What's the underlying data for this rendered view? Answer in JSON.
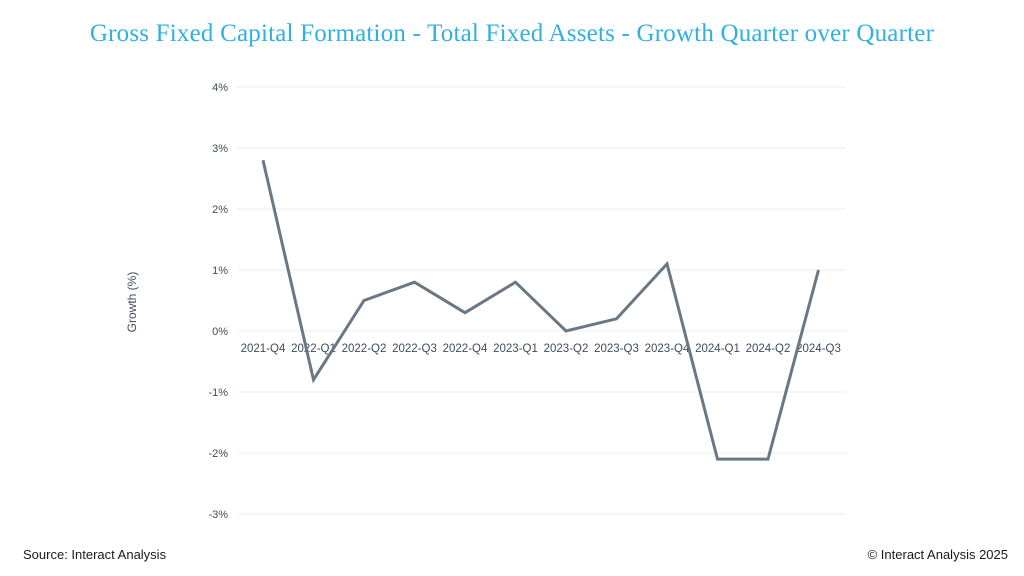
{
  "title": "Gross Fixed Capital Formation - Total Fixed Assets - Growth Quarter over Quarter",
  "footer": {
    "source": "Source: Interact Analysis",
    "copyright": "© Interact Analysis 2025"
  },
  "colors": {
    "accent": "#2fb0e1",
    "line": "#6b7883",
    "axis_text": "#3f4c5a",
    "grid": "#ececec",
    "footer_text": "#1a1a1a",
    "background": "#ffffff"
  },
  "chart_data": {
    "type": "line",
    "title": "Gross Fixed Capital Formation - Total Fixed Assets - Growth Quarter over Quarter",
    "categories": [
      "2021-Q4",
      "2022-Q1",
      "2022-Q2",
      "2022-Q3",
      "2022-Q4",
      "2023-Q1",
      "2023-Q2",
      "2023-Q3",
      "2023-Q4",
      "2024-Q1",
      "2024-Q2",
      "2024-Q3"
    ],
    "values": [
      2.8,
      -0.8,
      0.5,
      0.8,
      0.3,
      0.8,
      0.0,
      0.2,
      1.1,
      -2.1,
      -2.1,
      1.0
    ],
    "xlabel": "",
    "ylabel": "Growth (%)",
    "ylim": [
      -3,
      4
    ],
    "yticks": [
      4,
      3,
      2,
      1,
      0,
      -1,
      -2,
      -3
    ],
    "ytick_suffix": "%",
    "grid": true,
    "legend": "none",
    "x_labels_at_zero_line": true
  }
}
